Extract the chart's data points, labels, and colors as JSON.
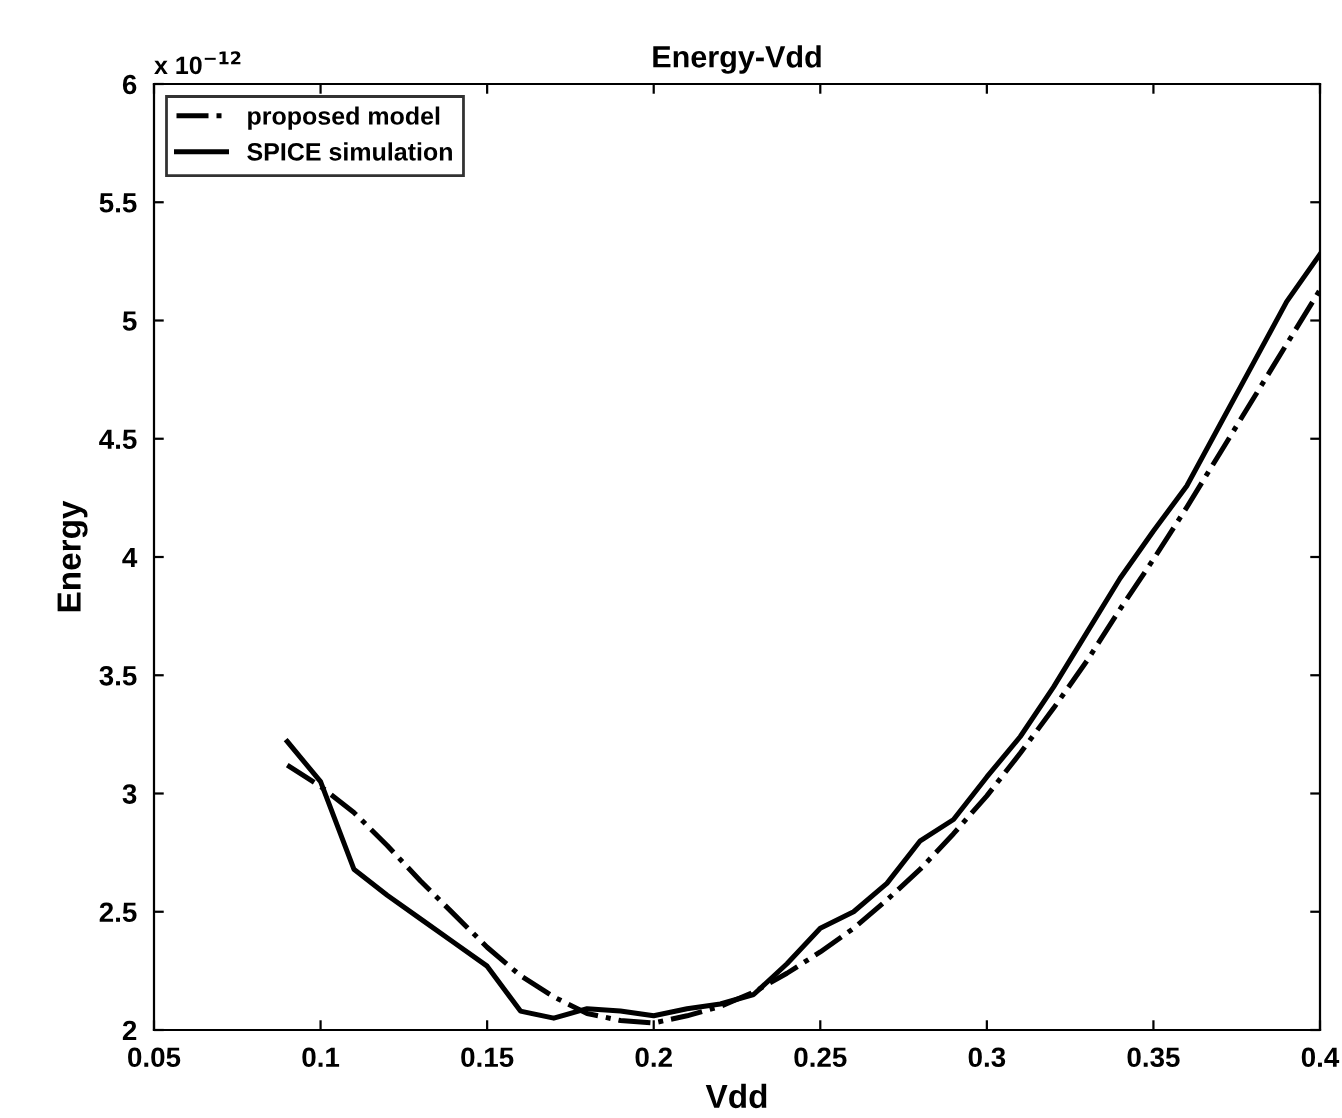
{
  "chart_data": {
    "type": "line",
    "title": "Energy-Vdd",
    "xlabel": "Vdd",
    "ylabel": "Energy",
    "annotations": [
      "x 10$^{−12}$"
    ],
    "x": [
      0.09,
      0.1,
      0.11,
      0.12,
      0.13,
      0.14,
      0.15,
      0.16,
      0.17,
      0.18,
      0.19,
      0.2,
      0.21,
      0.22,
      0.23,
      0.24,
      0.25,
      0.26,
      0.27,
      0.28,
      0.29,
      0.3,
      0.31,
      0.32,
      0.33,
      0.34,
      0.35,
      0.36,
      0.37,
      0.38,
      0.39,
      0.4
    ],
    "series": [
      {
        "name": "proposed model",
        "color": "#000000",
        "line_style": "dashdot",
        "values": [
          3.12,
          3.03,
          2.92,
          2.78,
          2.63,
          2.49,
          2.35,
          2.23,
          2.14,
          2.07,
          2.04,
          2.03,
          2.06,
          2.1,
          2.16,
          2.24,
          2.33,
          2.43,
          2.55,
          2.68,
          2.83,
          2.99,
          3.17,
          3.36,
          3.56,
          3.78,
          3.99,
          4.21,
          4.44,
          4.67,
          4.9,
          5.13
        ]
      },
      {
        "name": "SPICE simulation",
        "color": "#000000",
        "line_style": "solid",
        "values": [
          3.22,
          3.05,
          2.68,
          2.57,
          2.47,
          2.37,
          2.27,
          2.08,
          2.05,
          2.09,
          2.08,
          2.06,
          2.09,
          2.11,
          2.15,
          2.28,
          2.43,
          2.5,
          2.62,
          2.8,
          2.89,
          3.07,
          3.24,
          3.45,
          3.68,
          3.91,
          4.11,
          4.3,
          4.56,
          4.82,
          5.08,
          5.28
        ]
      }
    ],
    "xlim": [
      0.05,
      0.4
    ],
    "ylim": [
      2,
      6
    ],
    "xticks": [
      0.05,
      0.1,
      0.15,
      0.2,
      0.25,
      0.3,
      0.35,
      0.4
    ],
    "yticks": [
      2,
      2.5,
      3,
      3.5,
      4,
      4.5,
      5,
      5.5,
      6
    ],
    "grid": false,
    "legend": "top left",
    "marker": "none"
  }
}
